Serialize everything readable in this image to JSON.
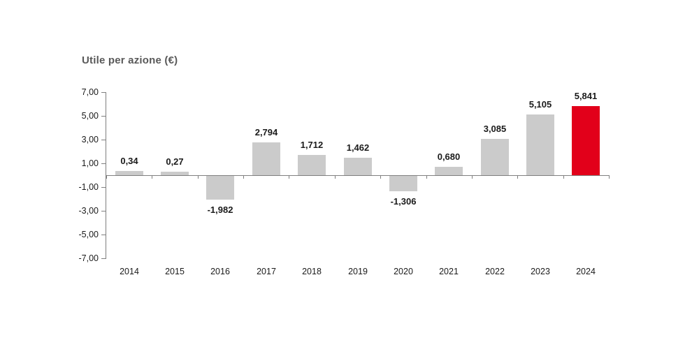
{
  "chart_data": {
    "type": "bar",
    "title": "Utile per azione (€)",
    "categories": [
      "2014",
      "2015",
      "2016",
      "2017",
      "2018",
      "2019",
      "2020",
      "2021",
      "2022",
      "2023",
      "2024"
    ],
    "values": [
      0.34,
      0.27,
      -1.982,
      2.794,
      1.712,
      1.462,
      -1.306,
      0.68,
      3.085,
      5.105,
      5.841
    ],
    "value_labels": [
      "0,34",
      "0,27",
      "-1,982",
      "2,794",
      "1,712",
      "1,462",
      "-1,306",
      "0,680",
      "3,085",
      "5,105",
      "5,841"
    ],
    "y_ticks": [
      7,
      5,
      3,
      1,
      -1,
      -3,
      -5,
      -7
    ],
    "y_tick_labels": [
      "7,00",
      "5,00",
      "3,00",
      "1,00",
      "-1,00",
      "-3,00",
      "-5,00",
      "-7,00"
    ],
    "ylim": [
      -7,
      7
    ],
    "xlabel": "",
    "ylabel": "",
    "grid": false,
    "legend": false,
    "colors": {
      "bar_default": "#cbcbcb",
      "bar_highlight": "#e2001a",
      "axis": "#7f7f7f",
      "title": "#595959",
      "text": "#1a1a1a"
    },
    "highlight_index": 10
  }
}
